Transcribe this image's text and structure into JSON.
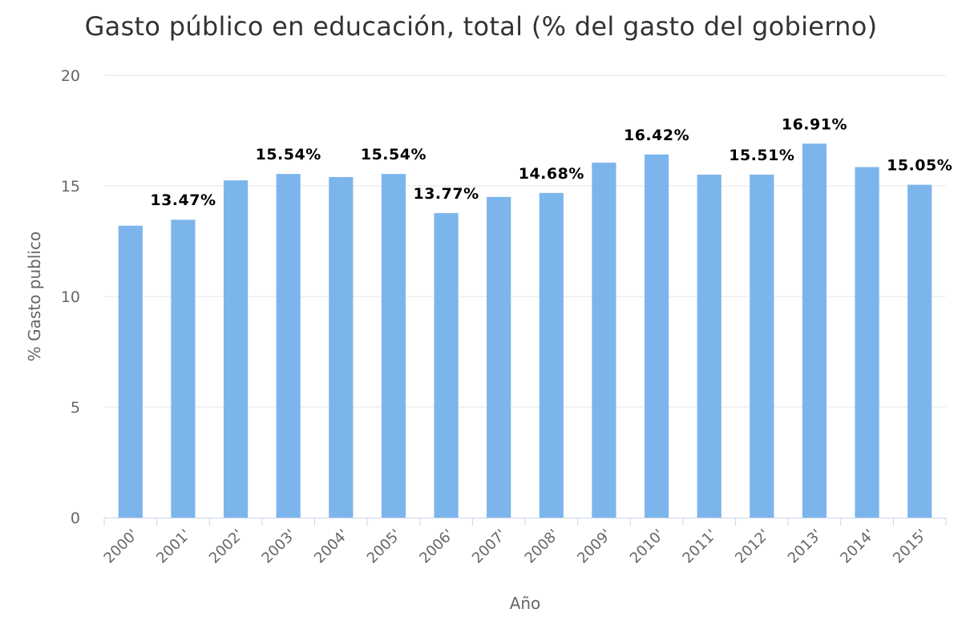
{
  "chart_data": {
    "type": "bar",
    "title": "Gasto público en educación, total (% del gasto del gobierno)",
    "xlabel": "Año",
    "ylabel": "% Gasto publico",
    "ylim": [
      0,
      20
    ],
    "yticks": [
      0,
      5,
      10,
      15,
      20
    ],
    "grid": true,
    "legend": "none",
    "bar_color": "#7cb5ec",
    "categories": [
      "2000'",
      "2001'",
      "2002'",
      "2003'",
      "2004'",
      "2005'",
      "2006'",
      "2007'",
      "2008'",
      "2009'",
      "2010'",
      "2011'",
      "2012'",
      "2013'",
      "2014'",
      "2015'"
    ],
    "values": [
      13.2,
      13.47,
      15.25,
      15.54,
      15.4,
      15.54,
      13.77,
      14.5,
      14.68,
      16.05,
      16.42,
      15.51,
      15.51,
      16.91,
      15.85,
      15.05
    ],
    "data_labels": [
      "",
      "13.47%",
      "",
      "15.54%",
      "",
      "15.54%",
      "13.77%",
      "",
      "14.68%",
      "",
      "16.42%",
      "",
      "15.51%",
      "16.91%",
      "",
      "15.05%"
    ]
  }
}
